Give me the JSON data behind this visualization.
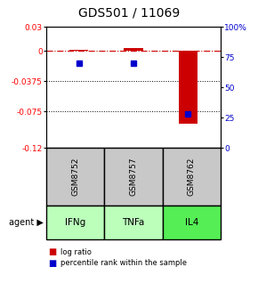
{
  "title": "GDS501 / 11069",
  "samples": [
    "GSM8752",
    "GSM8757",
    "GSM8762"
  ],
  "agents": [
    "IFNg",
    "TNFa",
    "IL4"
  ],
  "log_ratios": [
    0.001,
    0.004,
    -0.09
  ],
  "percentile_ranks": [
    70,
    70,
    28
  ],
  "ylim_left": [
    -0.12,
    0.03
  ],
  "ylim_right": [
    0,
    100
  ],
  "left_ticks": [
    0.03,
    0,
    -0.0375,
    -0.075,
    -0.12
  ],
  "left_tick_labels": [
    "0.03",
    "0",
    "-0.0375",
    "-0.075",
    "-0.12"
  ],
  "right_ticks": [
    100,
    75,
    50,
    25,
    0
  ],
  "right_tick_labels": [
    "100%",
    "75",
    "50",
    "25",
    "0"
  ],
  "dotted_ticks": [
    -0.0375,
    -0.075
  ],
  "bar_color": "#cc0000",
  "dot_color": "#0000cc",
  "agent_colors": {
    "IFNg": "#bbffbb",
    "TNFa": "#bbffbb",
    "IL4": "#55ee55"
  },
  "sample_bg_color": "#c8c8c8",
  "title_fontsize": 10,
  "bar_width": 0.35,
  "legend_red_label": "log ratio",
  "legend_blue_label": "percentile rank within the sample"
}
